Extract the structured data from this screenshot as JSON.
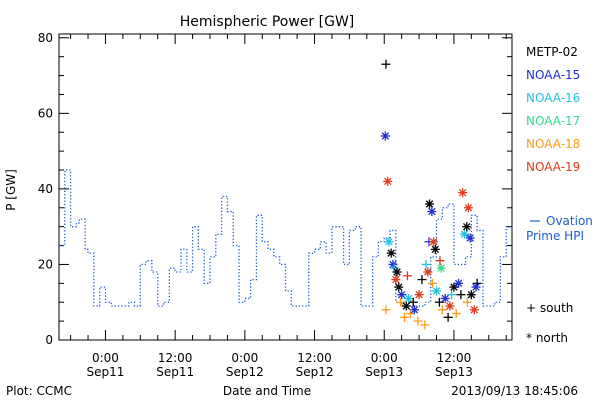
{
  "chart_data": {
    "type": "line",
    "title": "Hemispheric Power [GW]",
    "xlabel": "Date and Time",
    "ylabel": "P [GW]",
    "xlim": [
      -8,
      70
    ],
    "ylim": [
      0,
      81
    ],
    "yticks": [
      0,
      20,
      40,
      60,
      80
    ],
    "xticks": [
      {
        "x": 0,
        "time": "0:00",
        "date": "Sep11"
      },
      {
        "x": 12,
        "time": "12:00",
        "date": "Sep11"
      },
      {
        "x": 24,
        "time": "0:00",
        "date": "Sep12"
      },
      {
        "x": 36,
        "time": "12:00",
        "date": "Sep12"
      },
      {
        "x": 48,
        "time": "0:00",
        "date": "Sep13"
      },
      {
        "x": 60,
        "time": "12:00",
        "date": "Sep13"
      }
    ],
    "x_units": "hours after 0:00 Sep11",
    "footer_left": "Plot: CCMC",
    "footer_right": "2013/09/13 18:45:06",
    "ovation": {
      "label_line1": "Ovation",
      "label_line2": "Prime HPI",
      "color": "#1e5fd0",
      "x": [
        -8,
        -7,
        -6,
        -5,
        -4.5,
        -3.5,
        -3,
        -2,
        -1,
        0,
        1,
        2,
        3,
        4,
        5,
        6,
        7,
        8,
        9,
        10,
        11,
        12,
        13,
        14,
        15,
        16,
        17,
        18,
        19,
        20,
        21,
        22,
        23,
        24,
        25,
        26,
        27,
        28,
        29,
        30,
        31,
        32,
        33,
        34,
        35,
        36,
        37,
        38,
        39,
        40,
        41,
        42,
        43,
        44,
        45,
        46,
        47,
        48,
        49,
        50,
        51,
        52,
        53,
        54,
        55,
        56,
        57,
        58,
        59,
        60,
        61,
        62,
        63,
        64,
        65,
        66,
        67,
        68,
        69,
        70
      ],
      "y": [
        25,
        45,
        30,
        31,
        32,
        24,
        23,
        9,
        14,
        10,
        9,
        9,
        9,
        10,
        9,
        20,
        21,
        18,
        9,
        10,
        19,
        18,
        24,
        18,
        30,
        24,
        15,
        22,
        28,
        38,
        34,
        25,
        10,
        11,
        16,
        33,
        26,
        24,
        22,
        20,
        13,
        9,
        9,
        9,
        23,
        24,
        26,
        23,
        30,
        30,
        20,
        29,
        30,
        9,
        9,
        22,
        26,
        27,
        29,
        10,
        9,
        9,
        9,
        9,
        10,
        22,
        32,
        35,
        36,
        20,
        20,
        22,
        33,
        29,
        9,
        9,
        10,
        22,
        30,
        29
      ]
    },
    "satellites": [
      {
        "name": "METP-02",
        "color": "#000000"
      },
      {
        "name": "NOAA-15",
        "color": "#1f2fd0"
      },
      {
        "name": "NOAA-16",
        "color": "#22c3e0"
      },
      {
        "name": "NOAA-17",
        "color": "#33dd8a"
      },
      {
        "name": "NOAA-18",
        "color": "#ff9a1a"
      },
      {
        "name": "NOAA-19",
        "color": "#e23a18"
      }
    ],
    "markers": {
      "south_symbol": "+",
      "south_label": "south",
      "north_symbol": "*",
      "north_label": "north"
    },
    "points": [
      {
        "sat": 0,
        "kind": "south",
        "x": 48.3,
        "y": 73
      },
      {
        "sat": 1,
        "kind": "north",
        "x": 48.2,
        "y": 54
      },
      {
        "sat": 5,
        "kind": "north",
        "x": 48.6,
        "y": 42
      },
      {
        "sat": 2,
        "kind": "north",
        "x": 48.8,
        "y": 26
      },
      {
        "sat": 4,
        "kind": "south",
        "x": 48.3,
        "y": 8
      },
      {
        "sat": 0,
        "kind": "north",
        "x": 49.2,
        "y": 23
      },
      {
        "sat": 1,
        "kind": "north",
        "x": 49.5,
        "y": 20
      },
      {
        "sat": 2,
        "kind": "south",
        "x": 49.7,
        "y": 19
      },
      {
        "sat": 0,
        "kind": "north",
        "x": 50.2,
        "y": 18
      },
      {
        "sat": 5,
        "kind": "north",
        "x": 50.0,
        "y": 16
      },
      {
        "sat": 0,
        "kind": "north",
        "x": 50.5,
        "y": 14
      },
      {
        "sat": 4,
        "kind": "south",
        "x": 50.8,
        "y": 10
      },
      {
        "sat": 1,
        "kind": "north",
        "x": 51.0,
        "y": 12
      },
      {
        "sat": 4,
        "kind": "south",
        "x": 51.5,
        "y": 6
      },
      {
        "sat": 0,
        "kind": "north",
        "x": 51.8,
        "y": 9
      },
      {
        "sat": 5,
        "kind": "south",
        "x": 52.0,
        "y": 17
      },
      {
        "sat": 2,
        "kind": "north",
        "x": 52.2,
        "y": 11
      },
      {
        "sat": 4,
        "kind": "south",
        "x": 52.5,
        "y": 7
      },
      {
        "sat": 0,
        "kind": "south",
        "x": 53.0,
        "y": 10
      },
      {
        "sat": 1,
        "kind": "north",
        "x": 53.2,
        "y": 8
      },
      {
        "sat": 4,
        "kind": "south",
        "x": 53.8,
        "y": 5
      },
      {
        "sat": 5,
        "kind": "north",
        "x": 54.0,
        "y": 12
      },
      {
        "sat": 0,
        "kind": "south",
        "x": 54.5,
        "y": 16
      },
      {
        "sat": 4,
        "kind": "south",
        "x": 55.0,
        "y": 4
      },
      {
        "sat": 5,
        "kind": "north",
        "x": 55.5,
        "y": 18
      },
      {
        "sat": 1,
        "kind": "south",
        "x": 55.7,
        "y": 26
      },
      {
        "sat": 2,
        "kind": "south",
        "x": 55.2,
        "y": 20
      },
      {
        "sat": 0,
        "kind": "north",
        "x": 55.8,
        "y": 36
      },
      {
        "sat": 1,
        "kind": "north",
        "x": 56.2,
        "y": 34
      },
      {
        "sat": 5,
        "kind": "north",
        "x": 56.5,
        "y": 26
      },
      {
        "sat": 0,
        "kind": "north",
        "x": 56.8,
        "y": 24
      },
      {
        "sat": 4,
        "kind": "south",
        "x": 56.3,
        "y": 15
      },
      {
        "sat": 2,
        "kind": "north",
        "x": 57.0,
        "y": 13
      },
      {
        "sat": 0,
        "kind": "south",
        "x": 57.5,
        "y": 10
      },
      {
        "sat": 5,
        "kind": "south",
        "x": 57.6,
        "y": 21
      },
      {
        "sat": 3,
        "kind": "north",
        "x": 57.8,
        "y": 19
      },
      {
        "sat": 4,
        "kind": "south",
        "x": 58.0,
        "y": 8
      },
      {
        "sat": 1,
        "kind": "north",
        "x": 58.5,
        "y": 11
      },
      {
        "sat": 0,
        "kind": "south",
        "x": 59.0,
        "y": 6
      },
      {
        "sat": 5,
        "kind": "north",
        "x": 59.3,
        "y": 9
      },
      {
        "sat": 2,
        "kind": "south",
        "x": 59.6,
        "y": 12
      },
      {
        "sat": 0,
        "kind": "north",
        "x": 60.0,
        "y": 14
      },
      {
        "sat": 4,
        "kind": "south",
        "x": 60.4,
        "y": 7
      },
      {
        "sat": 1,
        "kind": "north",
        "x": 60.8,
        "y": 15
      },
      {
        "sat": 0,
        "kind": "south",
        "x": 61.2,
        "y": 12
      },
      {
        "sat": 5,
        "kind": "north",
        "x": 61.5,
        "y": 39
      },
      {
        "sat": 2,
        "kind": "north",
        "x": 61.8,
        "y": 28
      },
      {
        "sat": 0,
        "kind": "north",
        "x": 62.2,
        "y": 30
      },
      {
        "sat": 5,
        "kind": "north",
        "x": 62.5,
        "y": 35
      },
      {
        "sat": 1,
        "kind": "north",
        "x": 62.8,
        "y": 27
      },
      {
        "sat": 4,
        "kind": "south",
        "x": 62.3,
        "y": 10
      },
      {
        "sat": 0,
        "kind": "north",
        "x": 63.0,
        "y": 12
      },
      {
        "sat": 5,
        "kind": "north",
        "x": 63.5,
        "y": 8
      },
      {
        "sat": 0,
        "kind": "south",
        "x": 64.0,
        "y": 15
      },
      {
        "sat": 1,
        "kind": "north",
        "x": 63.8,
        "y": 14
      }
    ]
  }
}
